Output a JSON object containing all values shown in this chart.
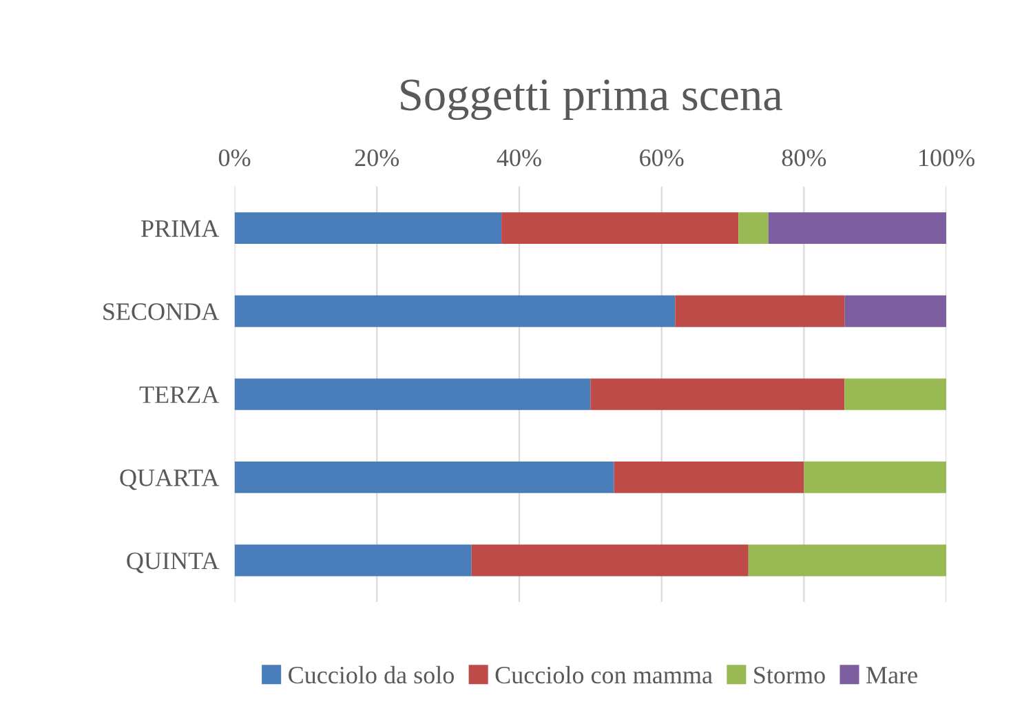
{
  "chart_data": {
    "type": "bar",
    "title": "Soggetti prima scena",
    "orientation": "horizontal",
    "stacked": true,
    "categories": [
      "PRIMA",
      "SECONDA",
      "TERZA",
      "QUARTA",
      "QUINTA"
    ],
    "series": [
      {
        "name": "Cucciolo da solo",
        "color": "#4a7ebb",
        "values": [
          37.5,
          61.9,
          50,
          53.3,
          33.3
        ]
      },
      {
        "name": "Cucciolo con mamma",
        "color": "#be4b48",
        "values": [
          33.3,
          23.8,
          35.7,
          26.7,
          38.9
        ]
      },
      {
        "name": "Stormo",
        "color": "#98b954",
        "values": [
          4.2,
          null,
          14.3,
          20,
          27.8
        ]
      },
      {
        "name": "Mare",
        "color": "#7d5fa0",
        "values": [
          25,
          14.3,
          null,
          null,
          null
        ]
      }
    ],
    "xlim": [
      0,
      100
    ],
    "xticks": [
      {
        "value": 0,
        "label": "0%"
      },
      {
        "value": 20,
        "label": "20%"
      },
      {
        "value": 40,
        "label": "40%"
      },
      {
        "value": 60,
        "label": "60%"
      },
      {
        "value": 80,
        "label": "80%"
      },
      {
        "value": 100,
        "label": "100%"
      }
    ],
    "grid": "x",
    "legend": "bottom"
  }
}
